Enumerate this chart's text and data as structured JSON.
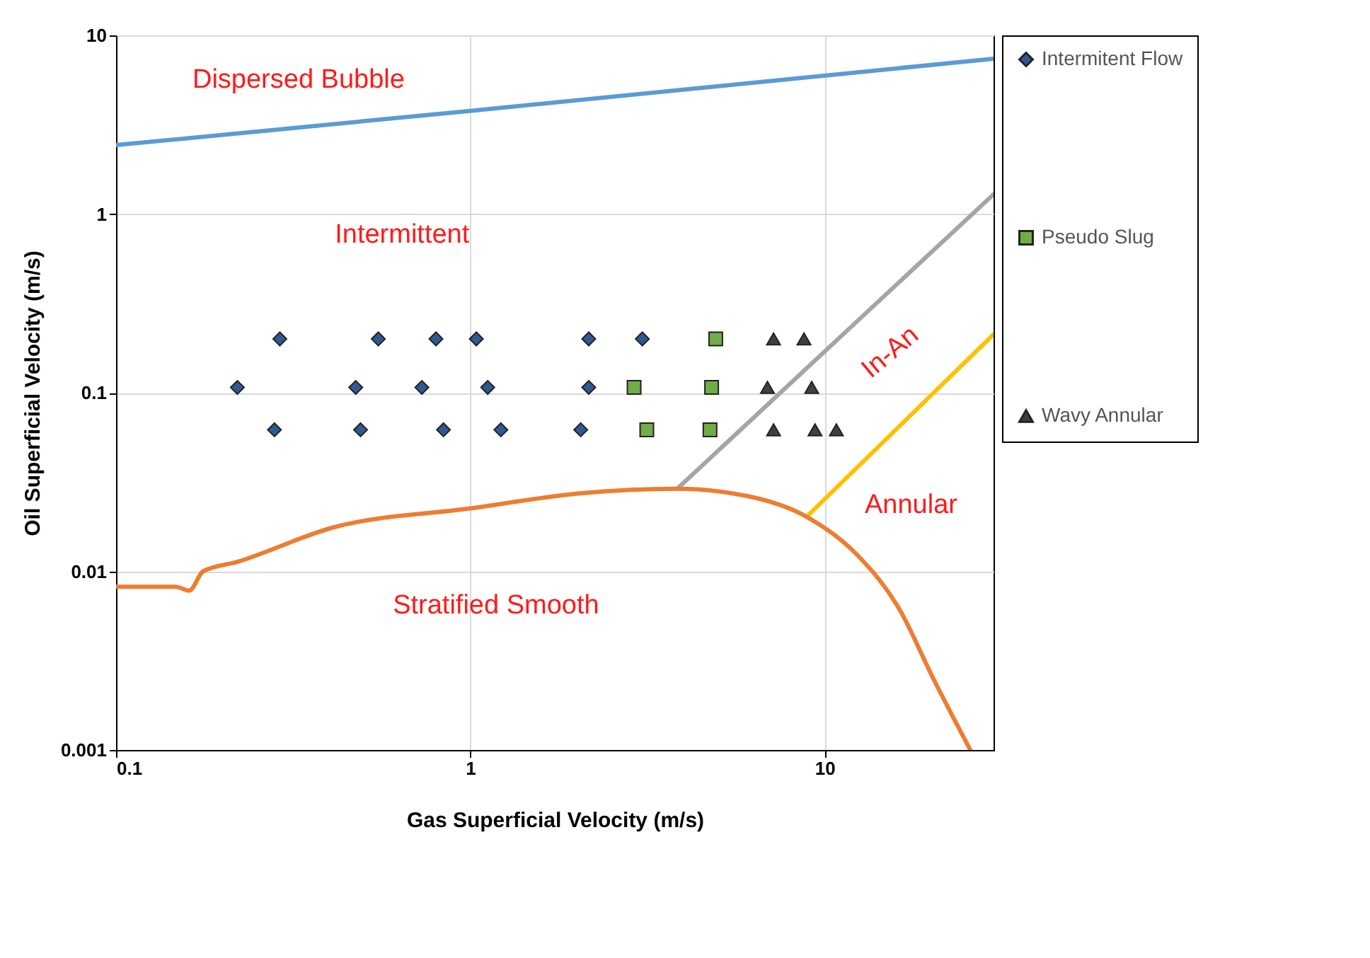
{
  "chart_data": {
    "type": "scatter",
    "xlabel": "Gas Superficial Velocity (m/s)",
    "ylabel": "Oil Superficial Velocity (m/s)",
    "log": "xy",
    "xlim": [
      0.1,
      30
    ],
    "ylim": [
      0.001,
      10
    ],
    "xticks": [
      0.1,
      1,
      10
    ],
    "yticks": [
      0.001,
      0.01,
      0.1,
      1,
      10
    ],
    "grid": true,
    "legend": "right",
    "annotations": [
      "Dispersed Bubble",
      "Intermittent",
      "In-An",
      "Annular",
      "Stratified Smooth"
    ],
    "series": [
      {
        "name": "Intermitent Flow",
        "marker": "diamond",
        "color": "#2e5a94",
        "x": [
          0.29,
          0.55,
          0.8,
          1.04,
          2.16,
          3.06,
          0.22,
          0.475,
          0.73,
          1.12,
          2.16,
          0.28,
          0.49,
          0.84,
          1.22,
          2.05
        ],
        "values": [
          0.2,
          0.2,
          0.2,
          0.2,
          0.2,
          0.2,
          0.107,
          0.107,
          0.107,
          0.107,
          0.107,
          0.062,
          0.062,
          0.062,
          0.062,
          0.062
        ]
      },
      {
        "name": "Pseudo Slug",
        "marker": "square",
        "color": "#70ad47",
        "x": [
          4.93,
          2.9,
          4.8,
          3.15,
          4.75
        ],
        "values": [
          0.2,
          0.107,
          0.107,
          0.062,
          0.062
        ]
      },
      {
        "name": "Wavy Annular",
        "marker": "triangle",
        "color": "#404040",
        "x": [
          7.18,
          8.75,
          6.9,
          9.2,
          7.18,
          9.4,
          10.8
        ],
        "values": [
          0.2,
          0.2,
          0.107,
          0.107,
          0.062,
          0.062,
          0.062
        ]
      },
      {
        "type": "line",
        "color": "#5b9bd5",
        "x": [
          0.1,
          1,
          30
        ],
        "values": [
          2.43,
          3.78,
          7.4
        ]
      },
      {
        "type": "line",
        "color": "#a5a5a5",
        "x": [
          3.84,
          30
        ],
        "values": [
          0.029,
          1.29
        ]
      },
      {
        "type": "line",
        "color": "#ffc000",
        "x": [
          8.9,
          30
        ],
        "values": [
          0.0202,
          0.212
        ]
      },
      {
        "type": "line",
        "color": "#ed7d31",
        "x": [
          0.1,
          0.147,
          0.161,
          0.176,
          0.22,
          0.41,
          1.0,
          2.07,
          3.84,
          6.05,
          8.9,
          12.4,
          16.3,
          20.3,
          25.8
        ],
        "values": [
          0.0082,
          0.0082,
          0.0078,
          0.01,
          0.0113,
          0.0176,
          0.0225,
          0.0274,
          0.029,
          0.0264,
          0.0202,
          0.0123,
          0.0061,
          0.0025,
          0.001
        ]
      }
    ]
  }
}
